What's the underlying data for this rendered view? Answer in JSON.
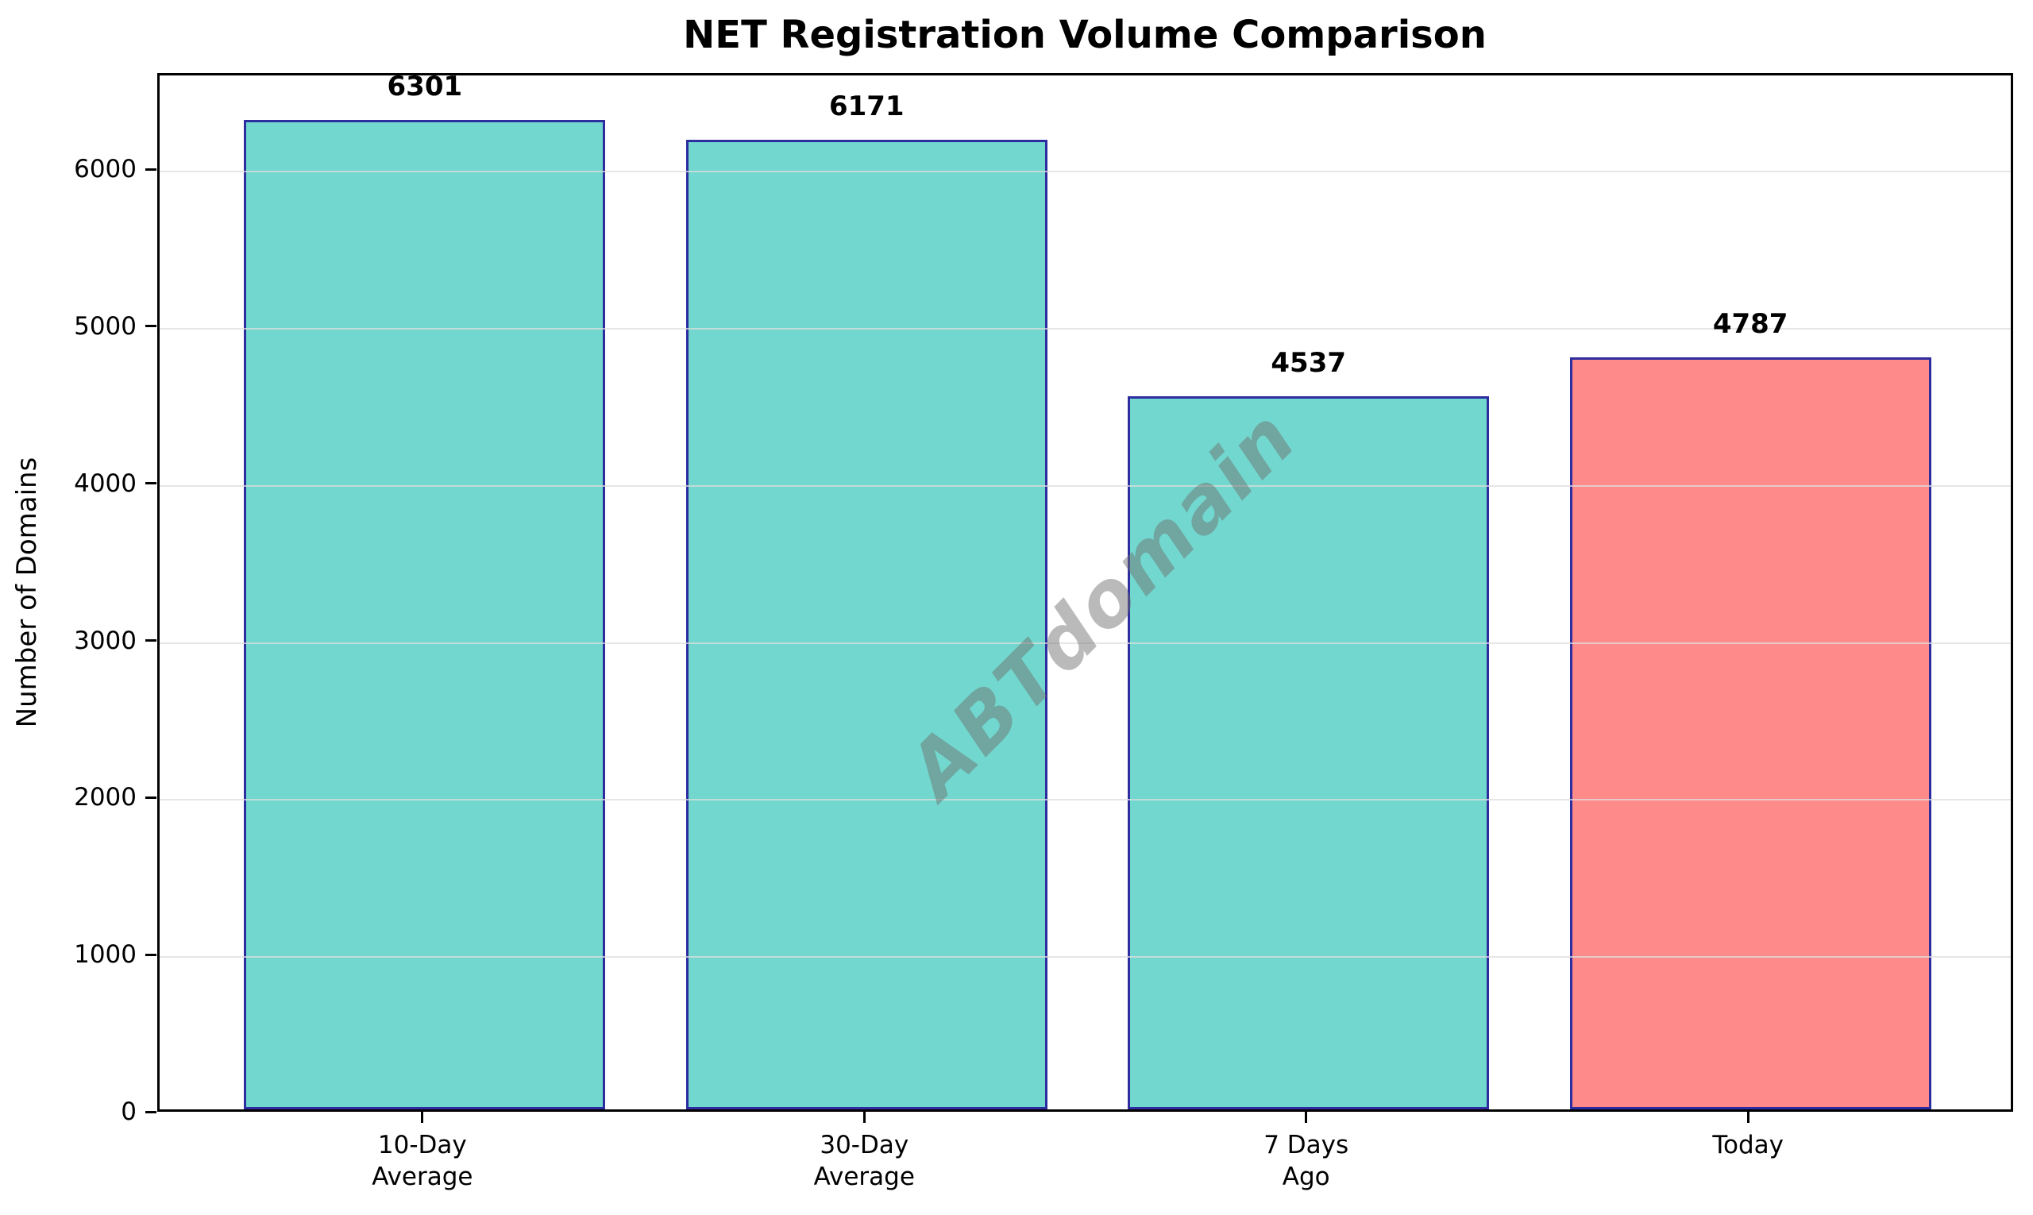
{
  "chart_data": {
    "type": "bar",
    "title": "NET Registration Volume Comparison",
    "ylabel": "Number of Domains",
    "xlabel": "",
    "categories": [
      {
        "label_lines": [
          "10-Day",
          "Average"
        ]
      },
      {
        "label_lines": [
          "30-Day",
          "Average"
        ]
      },
      {
        "label_lines": [
          "7 Days",
          "Ago"
        ]
      },
      {
        "label_lines": [
          "Today"
        ]
      }
    ],
    "values": [
      6301,
      6171,
      4537,
      4787
    ],
    "value_labels": [
      "6301",
      "6171",
      "4537",
      "4787"
    ],
    "bar_colors": [
      "#72D7CE",
      "#72D7CE",
      "#72D7CE",
      "#FF8A8A"
    ],
    "bar_edge_color": "#2D2DA0",
    "ylim": [
      0,
      6612
    ],
    "yticks": [
      0,
      1000,
      2000,
      3000,
      4000,
      5000,
      6000
    ],
    "grid": "horizontal",
    "gridline_color": "#DEDEDE",
    "legend": null,
    "watermark": "ABTdomain"
  }
}
